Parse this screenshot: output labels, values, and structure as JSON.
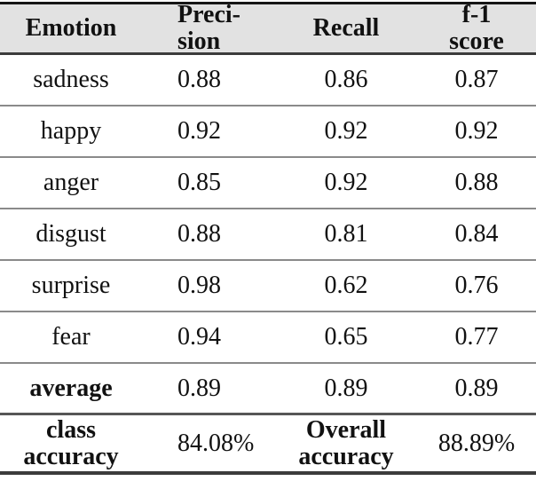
{
  "table": {
    "header": {
      "emotion": "Emotion",
      "precision_line1": "Preci-",
      "precision_line2": "sion",
      "recall": "Recall",
      "f1_line1": "f-1",
      "f1_line2": "score"
    },
    "rows": [
      {
        "emotion": "sadness",
        "precision": "0.88",
        "recall": "0.86",
        "f1": "0.87"
      },
      {
        "emotion": "happy",
        "precision": "0.92",
        "recall": "0.92",
        "f1": "0.92"
      },
      {
        "emotion": "anger",
        "precision": "0.85",
        "recall": "0.92",
        "f1": "0.88"
      },
      {
        "emotion": "disgust",
        "precision": "0.88",
        "recall": "0.81",
        "f1": "0.84"
      },
      {
        "emotion": "surprise",
        "precision": "0.98",
        "recall": "0.62",
        "f1": "0.76"
      },
      {
        "emotion": "fear",
        "precision": "0.94",
        "recall": "0.65",
        "f1": "0.77"
      }
    ],
    "average_row": {
      "label": "average",
      "precision": "0.89",
      "recall": "0.89",
      "f1": "0.89"
    },
    "footer": {
      "class_label_line1": "class",
      "class_label_line2": "accuracy",
      "class_accuracy": "84.08%",
      "overall_label_line1": "Overall",
      "overall_label_line2": "accuracy",
      "overall_accuracy": "88.89%"
    }
  },
  "colors": {
    "header_bg": "#e2e2e2",
    "rule_dark": "#161616",
    "rule_medium": "#3c3c3c",
    "rule_gray": "#8a8a8a",
    "text": "#111111"
  }
}
